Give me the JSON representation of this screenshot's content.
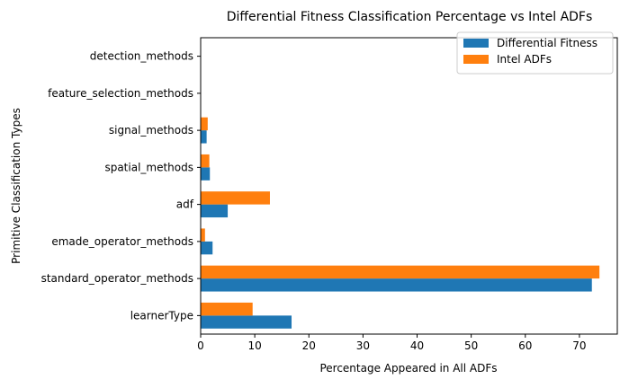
{
  "chart_data": {
    "type": "bar",
    "orientation": "horizontal",
    "title": "Differential Fitness Classification Percentage vs Intel ADFs",
    "xlabel": "Percentage Appeared in All ADFs",
    "ylabel": "Primitive Classification Types",
    "xlim": [
      0,
      77
    ],
    "xticks": [
      0,
      10,
      20,
      30,
      40,
      50,
      60,
      70
    ],
    "categories": [
      "learnerType",
      "standard_operator_methods",
      "emade_operator_methods",
      "adf",
      "spatial_methods",
      "signal_methods",
      "feature_selection_methods",
      "detection_methods"
    ],
    "series": [
      {
        "name": "Differential Fitness",
        "color": "#1f77b4",
        "values": [
          16.8,
          72.3,
          2.2,
          5.0,
          1.7,
          1.1,
          0,
          0
        ]
      },
      {
        "name": "Intel ADFs",
        "color": "#ff7f0e",
        "values": [
          9.6,
          73.7,
          0.8,
          12.8,
          1.6,
          1.3,
          0,
          0
        ]
      }
    ],
    "grid": false,
    "legend_position": "top-right"
  }
}
